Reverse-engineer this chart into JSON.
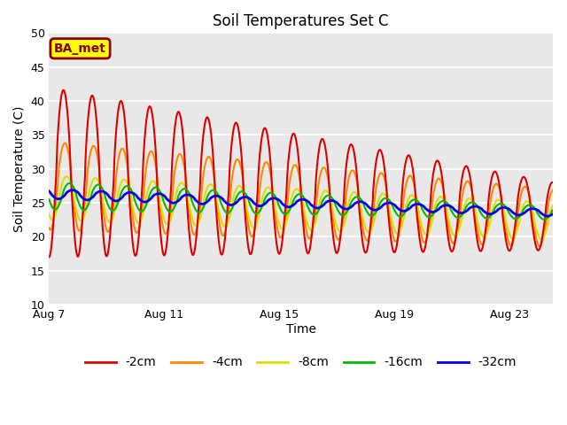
{
  "title": "Soil Temperatures Set C",
  "xlabel": "Time",
  "ylabel": "Soil Temperature (C)",
  "ylim": [
    10,
    50
  ],
  "xlim_days": [
    0,
    17.5
  ],
  "x_ticks": [
    0,
    4,
    8,
    12,
    16
  ],
  "x_tick_labels": [
    "Aug 7",
    "Aug 11",
    "Aug 15",
    "Aug 19",
    "Aug 23"
  ],
  "bg_color": "#e8e8e8",
  "bg_color_light": "#f0f0f0",
  "legend_entries": [
    "-2cm",
    "-4cm",
    "-8cm",
    "-16cm",
    "-32cm"
  ],
  "line_colors": [
    "#dd0000",
    "#ff8800",
    "#dddd00",
    "#00bb00",
    "#0000ee"
  ],
  "line_widths": [
    1.5,
    1.5,
    1.5,
    1.5,
    2.0
  ],
  "annotation_text": "BA_met",
  "annotation_bg": "#ffff00",
  "annotation_border": "#8b0000"
}
